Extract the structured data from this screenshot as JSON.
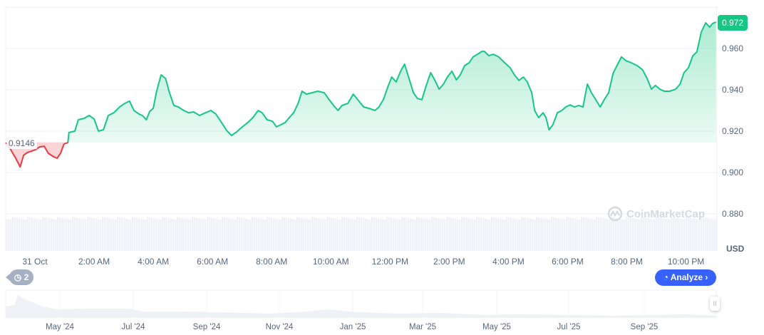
{
  "chart_data": {
    "type": "line",
    "unit": "USD",
    "current_price": "0.972",
    "baseline_label": "0.9146",
    "baseline": 0.9146,
    "ylim": [
      0.875,
      0.978
    ],
    "y_ticks": [
      "0.960",
      "0.940",
      "0.920",
      "0.900",
      "0.880"
    ],
    "x_ticks": [
      "31 Oct",
      "2:00 AM",
      "4:00 AM",
      "6:00 AM",
      "8:00 AM",
      "10:00 AM",
      "12:00 PM",
      "2:00 PM",
      "4:00 PM",
      "6:00 PM",
      "8:00 PM",
      "10:00 PM"
    ],
    "colors": {
      "up": "#16c784",
      "down": "#ea3943",
      "analyze": "#3861fb"
    },
    "points": [
      [
        "30 23:01",
        0.9145
      ],
      [
        "30 23:11",
        0.911
      ],
      [
        "30 23:21",
        0.9069
      ],
      [
        "30 23:30",
        0.9027
      ],
      [
        "30 23:37",
        0.9083
      ],
      [
        "30 23:44",
        0.9096
      ],
      [
        "30 23:53",
        0.9103
      ],
      [
        "31 00:01",
        0.911
      ],
      [
        "31 00:10",
        0.9124
      ],
      [
        "31 00:19",
        0.9127
      ],
      [
        "31 00:27",
        0.9093
      ],
      [
        "31 00:38",
        0.9076
      ],
      [
        "31 00:45",
        0.9069
      ],
      [
        "31 00:52",
        0.9093
      ],
      [
        "31 00:59",
        0.9138
      ],
      [
        "31 01:07",
        0.9145
      ],
      [
        "31 01:09",
        0.9193
      ],
      [
        "31 01:21",
        0.92
      ],
      [
        "31 01:28",
        0.9255
      ],
      [
        "31 01:40",
        0.9262
      ],
      [
        "31 01:50",
        0.9276
      ],
      [
        "31 02:00",
        0.9259
      ],
      [
        "31 02:09",
        0.92
      ],
      [
        "31 02:19",
        0.9207
      ],
      [
        "31 02:29",
        0.9276
      ],
      [
        "31 02:40",
        0.9289
      ],
      [
        "31 02:52",
        0.9317
      ],
      [
        "31 03:02",
        0.9334
      ],
      [
        "31 03:12",
        0.9345
      ],
      [
        "31 03:21",
        0.93
      ],
      [
        "31 03:31",
        0.9283
      ],
      [
        "31 03:38",
        0.9276
      ],
      [
        "31 03:46",
        0.9255
      ],
      [
        "31 03:53",
        0.9296
      ],
      [
        "31 04:00",
        0.931
      ],
      [
        "31 04:07",
        0.9393
      ],
      [
        "31 04:16",
        0.9472
      ],
      [
        "31 04:25",
        0.9455
      ],
      [
        "31 04:33",
        0.9386
      ],
      [
        "31 04:42",
        0.9324
      ],
      [
        "31 04:51",
        0.9317
      ],
      [
        "31 05:02",
        0.93
      ],
      [
        "31 05:12",
        0.9289
      ],
      [
        "31 05:22",
        0.9293
      ],
      [
        "31 05:34",
        0.9276
      ],
      [
        "31 05:46",
        0.9289
      ],
      [
        "31 05:57",
        0.93
      ],
      [
        "31 06:07",
        0.9283
      ],
      [
        "31 06:17",
        0.9248
      ],
      [
        "31 06:29",
        0.9203
      ],
      [
        "31 06:39",
        0.9179
      ],
      [
        "31 06:49",
        0.9196
      ],
      [
        "31 07:01",
        0.9221
      ],
      [
        "31 07:12",
        0.9242
      ],
      [
        "31 07:22",
        0.9265
      ],
      [
        "31 07:33",
        0.93
      ],
      [
        "31 07:41",
        0.9289
      ],
      [
        "31 07:51",
        0.9255
      ],
      [
        "31 08:02",
        0.9248
      ],
      [
        "31 08:10",
        0.9221
      ],
      [
        "31 08:19",
        0.9231
      ],
      [
        "31 08:28",
        0.9242
      ],
      [
        "31 08:36",
        0.9265
      ],
      [
        "31 08:45",
        0.9289
      ],
      [
        "31 08:54",
        0.9334
      ],
      [
        "31 09:02",
        0.9393
      ],
      [
        "31 09:11",
        0.9379
      ],
      [
        "31 09:22",
        0.9386
      ],
      [
        "31 09:34",
        0.9393
      ],
      [
        "31 09:47",
        0.9386
      ],
      [
        "31 09:57",
        0.9352
      ],
      [
        "31 10:06",
        0.9324
      ],
      [
        "31 10:15",
        0.93
      ],
      [
        "31 10:23",
        0.9324
      ],
      [
        "31 10:35",
        0.9334
      ],
      [
        "31 10:46",
        0.9379
      ],
      [
        "31 10:55",
        0.9352
      ],
      [
        "31 11:07",
        0.9317
      ],
      [
        "31 11:18",
        0.931
      ],
      [
        "31 11:30",
        0.93
      ],
      [
        "31 11:38",
        0.9317
      ],
      [
        "31 11:47",
        0.9352
      ],
      [
        "31 11:56",
        0.9414
      ],
      [
        "31 12:04",
        0.9462
      ],
      [
        "31 12:13",
        0.9438
      ],
      [
        "31 12:22",
        0.949
      ],
      [
        "31 12:30",
        0.9524
      ],
      [
        "31 12:39",
        0.9455
      ],
      [
        "31 12:48",
        0.9386
      ],
      [
        "31 12:56",
        0.9358
      ],
      [
        "31 13:05",
        0.9352
      ],
      [
        "31 13:14",
        0.9421
      ],
      [
        "31 13:23",
        0.9483
      ],
      [
        "31 13:31",
        0.9448
      ],
      [
        "31 13:40",
        0.9403
      ],
      [
        "31 13:49",
        0.9428
      ],
      [
        "31 13:57",
        0.9462
      ],
      [
        "31 14:06",
        0.949
      ],
      [
        "31 14:15",
        0.9448
      ],
      [
        "31 14:23",
        0.9472
      ],
      [
        "31 14:32",
        0.9517
      ],
      [
        "31 14:41",
        0.9531
      ],
      [
        "31 14:49",
        0.9559
      ],
      [
        "31 14:58",
        0.9572
      ],
      [
        "31 15:07",
        0.9586
      ],
      [
        "31 15:12",
        0.9586
      ],
      [
        "31 15:21",
        0.9565
      ],
      [
        "31 15:30",
        0.9572
      ],
      [
        "31 15:41",
        0.9559
      ],
      [
        "31 15:53",
        0.9531
      ],
      [
        "31 16:04",
        0.9507
      ],
      [
        "31 16:13",
        0.9472
      ],
      [
        "31 16:22",
        0.9445
      ],
      [
        "31 16:31",
        0.9462
      ],
      [
        "31 16:39",
        0.9438
      ],
      [
        "31 16:48",
        0.9386
      ],
      [
        "31 16:54",
        0.93
      ],
      [
        "31 17:02",
        0.9265
      ],
      [
        "31 17:11",
        0.9289
      ],
      [
        "31 17:17",
        0.9265
      ],
      [
        "31 17:23",
        0.9207
      ],
      [
        "31 17:31",
        0.9231
      ],
      [
        "31 17:40",
        0.9289
      ],
      [
        "31 17:49",
        0.93
      ],
      [
        "31 17:57",
        0.9317
      ],
      [
        "31 18:06",
        0.9327
      ],
      [
        "31 18:15",
        0.9317
      ],
      [
        "31 18:23",
        0.9324
      ],
      [
        "31 18:32",
        0.9317
      ],
      [
        "31 18:41",
        0.9428
      ],
      [
        "31 18:49",
        0.9386
      ],
      [
        "31 18:58",
        0.9352
      ],
      [
        "31 19:07",
        0.9317
      ],
      [
        "31 19:15",
        0.9352
      ],
      [
        "31 19:24",
        0.9386
      ],
      [
        "31 19:33",
        0.9479
      ],
      [
        "31 19:41",
        0.9517
      ],
      [
        "31 19:50",
        0.9559
      ],
      [
        "31 19:59",
        0.9541
      ],
      [
        "31 20:10",
        0.9531
      ],
      [
        "31 20:22",
        0.9517
      ],
      [
        "31 20:33",
        0.9497
      ],
      [
        "31 20:42",
        0.9455
      ],
      [
        "31 20:51",
        0.9403
      ],
      [
        "31 20:59",
        0.9421
      ],
      [
        "31 21:08",
        0.9403
      ],
      [
        "31 21:17",
        0.9393
      ],
      [
        "31 21:28",
        0.9393
      ],
      [
        "31 21:40",
        0.9403
      ],
      [
        "31 21:49",
        0.9428
      ],
      [
        "31 21:57",
        0.9483
      ],
      [
        "31 22:06",
        0.9507
      ],
      [
        "31 22:15",
        0.9565
      ],
      [
        "31 22:23",
        0.9583
      ],
      [
        "31 22:32",
        0.9679
      ],
      [
        "31 22:41",
        0.9724
      ],
      [
        "31 22:49",
        0.9703
      ],
      [
        "31 22:55",
        0.9721
      ],
      [
        "31 23:02",
        0.9728
      ]
    ]
  },
  "navigator": {
    "labels": [
      "May '24",
      "Jul '24",
      "Sep '24",
      "Nov '24",
      "Jan '25",
      "Mar '25",
      "May '25",
      "Jul '25",
      "Sep '25"
    ]
  },
  "ui": {
    "analyze_label": "Analyze",
    "analyze_chevron": "›",
    "history_count": "2",
    "watermark": "CoinMarketCap",
    "handle_glyph": "II"
  }
}
